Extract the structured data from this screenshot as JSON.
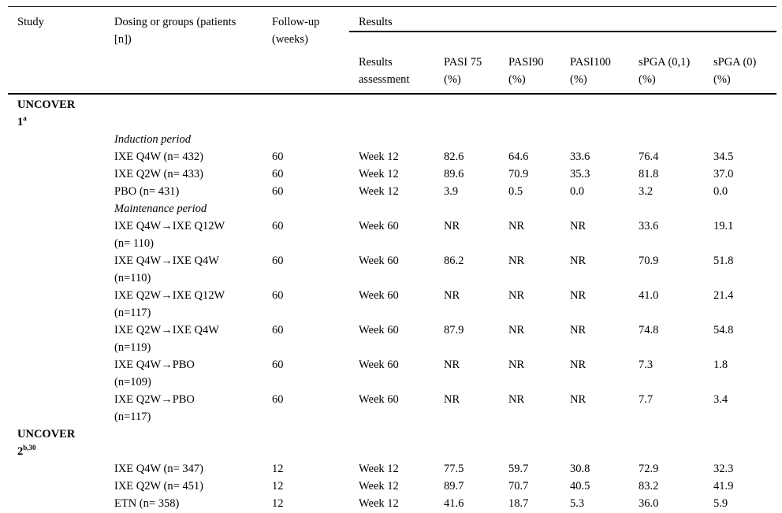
{
  "page": {
    "background_color": "#ffffff",
    "text_color": "#000000",
    "rule_color": "#000000"
  },
  "table": {
    "header": {
      "study": "Study",
      "dosing": "Dosing or groups (patients\n[n])",
      "followup": "Follow-up\n(weeks)",
      "results_group": "Results",
      "sub_headers": [
        "Results\nassessment",
        "PASI 75\n(%)",
        "PASI90\n(%)",
        "PASI100\n(%)",
        "sPGA (0,1)\n(%)",
        "sPGA (0)\n(%)"
      ]
    },
    "rows": [
      {
        "type": "study",
        "line1": "UNCOVER",
        "line2": "1",
        "sup": "a"
      },
      {
        "type": "period",
        "label": "Induction period"
      },
      {
        "type": "data",
        "dosing": "IXE Q4W (n= 432)",
        "followup": "60",
        "assessment": "Week 12",
        "values": [
          "82.6",
          "64.6",
          "33.6",
          "76.4",
          "34.5"
        ]
      },
      {
        "type": "data",
        "dosing": "IXE Q2W (n= 433)",
        "followup": "60",
        "assessment": "Week 12",
        "values": [
          "89.6",
          "70.9",
          "35.3",
          "81.8",
          "37.0"
        ]
      },
      {
        "type": "data",
        "dosing": "PBO (n= 431)",
        "followup": "60",
        "assessment": "Week 12",
        "values": [
          "3.9",
          "0.5",
          "0.0",
          "3.2",
          "0.0"
        ]
      },
      {
        "type": "period",
        "label": "Maintenance period"
      },
      {
        "type": "data",
        "dosing": "IXE Q4W→IXE Q12W\n(n= 110)",
        "followup": "60",
        "assessment": "Week 60",
        "values": [
          "NR",
          "NR",
          "NR",
          "33.6",
          "19.1"
        ]
      },
      {
        "type": "data",
        "dosing": "IXE Q4W→IXE Q4W\n(n=110)",
        "followup": "60",
        "assessment": "Week 60",
        "values": [
          "86.2",
          "NR",
          "NR",
          "70.9",
          "51.8"
        ]
      },
      {
        "type": "data",
        "dosing": "IXE Q2W→IXE Q12W\n(n=117)",
        "followup": "60",
        "assessment": "Week 60",
        "values": [
          "NR",
          "NR",
          "NR",
          "41.0",
          "21.4"
        ]
      },
      {
        "type": "data",
        "dosing": "IXE Q2W→IXE Q4W\n(n=119)",
        "followup": "60",
        "assessment": "Week 60",
        "values": [
          "87.9",
          "NR",
          "NR",
          "74.8",
          "54.8"
        ]
      },
      {
        "type": "data",
        "dosing": "IXE Q4W→PBO\n(n=109)",
        "followup": "60",
        "assessment": "Week 60",
        "values": [
          "NR",
          "NR",
          "NR",
          "7.3",
          "1.8"
        ]
      },
      {
        "type": "data",
        "dosing": "IXE Q2W→PBO\n(n=117)",
        "followup": "60",
        "assessment": "Week 60",
        "values": [
          "NR",
          "NR",
          "NR",
          "7.7",
          "3.4"
        ]
      },
      {
        "type": "study",
        "line1": "UNCOVER",
        "line2": "2",
        "sup": "b,30"
      },
      {
        "type": "data",
        "dosing": "IXE Q4W (n= 347)",
        "followup": "12",
        "assessment": "Week 12",
        "values": [
          "77.5",
          "59.7",
          "30.8",
          "72.9",
          "32.3"
        ]
      },
      {
        "type": "data",
        "dosing": "IXE Q2W (n= 451)",
        "followup": "12",
        "assessment": "Week 12",
        "values": [
          "89.7",
          "70.7",
          "40.5",
          "83.2",
          "41.9"
        ]
      },
      {
        "type": "data",
        "dosing": "ETN (n= 358)",
        "followup": "12",
        "assessment": "Week 12",
        "values": [
          "41.6",
          "18.7",
          "5.3",
          "36.0",
          "5.9"
        ]
      }
    ]
  }
}
